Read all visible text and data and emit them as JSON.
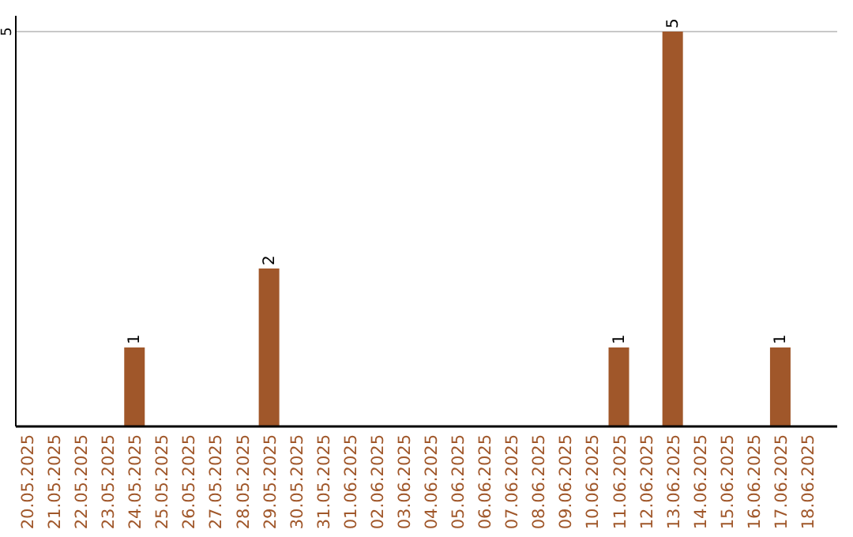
{
  "chart_data": {
    "type": "bar",
    "categories": [
      "20.05.2025",
      "21.05.2025",
      "22.05.2025",
      "23.05.2025",
      "24.05.2025",
      "25.05.2025",
      "26.05.2025",
      "27.05.2025",
      "28.05.2025",
      "29.05.2025",
      "30.05.2025",
      "31.05.2025",
      "01.06.2025",
      "02.06.2025",
      "03.06.2025",
      "04.06.2025",
      "05.06.2025",
      "06.06.2025",
      "07.06.2025",
      "08.06.2025",
      "09.06.2025",
      "10.06.2025",
      "11.06.2025",
      "12.06.2025",
      "13.06.2025",
      "14.06.2025",
      "15.06.2025",
      "16.06.2025",
      "17.06.2025",
      "18.06.2025"
    ],
    "values": [
      0,
      0,
      0,
      0,
      1,
      0,
      0,
      0,
      0,
      2,
      0,
      0,
      0,
      0,
      0,
      0,
      0,
      0,
      0,
      0,
      0,
      0,
      1,
      0,
      5,
      0,
      0,
      0,
      1,
      0
    ],
    "value_labels": [
      null,
      null,
      null,
      null,
      "1",
      null,
      null,
      null,
      null,
      "2",
      null,
      null,
      null,
      null,
      null,
      null,
      null,
      null,
      null,
      null,
      null,
      null,
      "1",
      null,
      "5",
      null,
      null,
      null,
      "1",
      null
    ],
    "color": "#a0572a",
    "ylim": [
      0,
      5.2
    ],
    "yticks": [
      5
    ],
    "grid": "y"
  }
}
